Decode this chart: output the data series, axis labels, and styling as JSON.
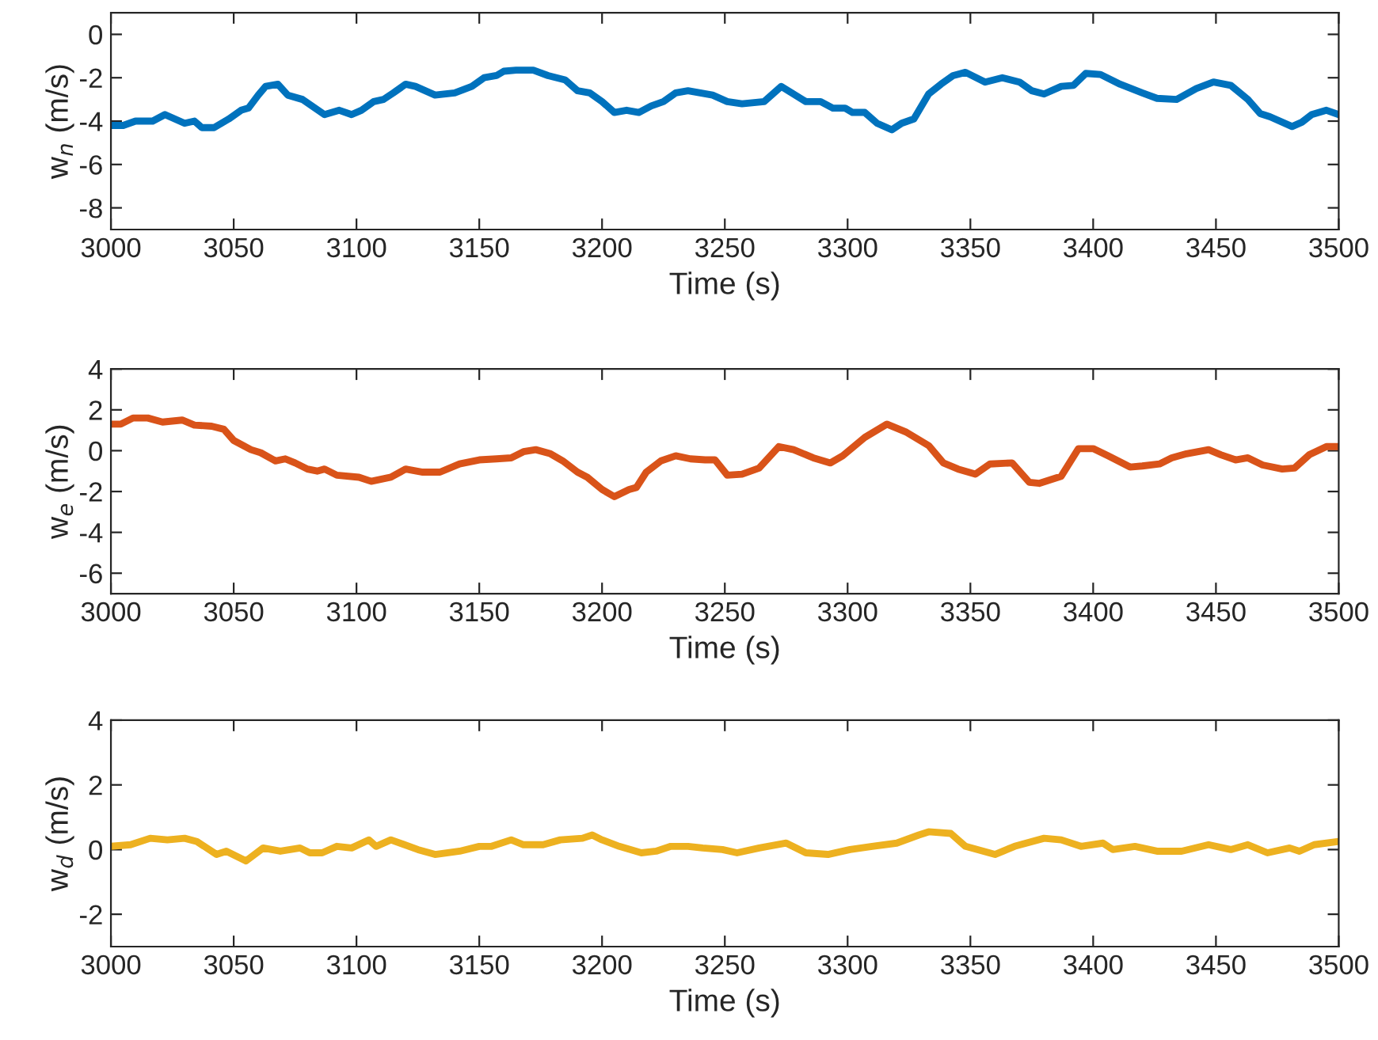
{
  "chart_data": [
    {
      "type": "line",
      "xlabel": "Time (s)",
      "ylabel": "w$_{n}$ (m/s)",
      "xlim": [
        3000,
        3500
      ],
      "xticks": [
        3000,
        3050,
        3100,
        3150,
        3200,
        3250,
        3300,
        3350,
        3400,
        3450,
        3500
      ],
      "ylim": [
        -9,
        1
      ],
      "yticks": [
        -8,
        -6,
        -4,
        -2,
        0
      ],
      "grid": false,
      "legend": false,
      "line_style": "solid",
      "marker": "none",
      "series": [
        {
          "color": "#0072bd",
          "x": [
            3000,
            3005,
            3010,
            3017,
            3022,
            3030,
            3034,
            3037,
            3042,
            3048,
            3053,
            3056,
            3060,
            3063,
            3068,
            3072,
            3078,
            3087,
            3093,
            3098,
            3102,
            3107,
            3111,
            3115,
            3120,
            3124,
            3132,
            3140,
            3147,
            3152,
            3157,
            3160,
            3165,
            3172,
            3178,
            3185,
            3190,
            3195,
            3200,
            3205,
            3210,
            3215,
            3220,
            3225,
            3230,
            3235,
            3240,
            3245,
            3251,
            3257,
            3266,
            3273,
            3283,
            3289,
            3294,
            3299,
            3302,
            3307,
            3312,
            3318,
            3322,
            3327,
            3333,
            3338,
            3343,
            3348,
            3356,
            3363,
            3370,
            3375,
            3380,
            3387,
            3392,
            3397,
            3403,
            3411,
            3420,
            3426,
            3434,
            3442,
            3449,
            3456,
            3463,
            3468,
            3472,
            3481,
            3485,
            3489,
            3495,
            3500
          ],
          "values": [
            -4.2,
            -4.2,
            -4.0,
            -4.0,
            -3.7,
            -4.1,
            -4.0,
            -4.3,
            -4.3,
            -3.9,
            -3.5,
            -3.4,
            -2.8,
            -2.4,
            -2.3,
            -2.8,
            -3.0,
            -3.7,
            -3.5,
            -3.7,
            -3.5,
            -3.1,
            -3.0,
            -2.7,
            -2.3,
            -2.4,
            -2.8,
            -2.7,
            -2.4,
            -2.0,
            -1.9,
            -1.7,
            -1.65,
            -1.65,
            -1.9,
            -2.1,
            -2.6,
            -2.7,
            -3.1,
            -3.6,
            -3.5,
            -3.6,
            -3.3,
            -3.1,
            -2.7,
            -2.6,
            -2.7,
            -2.8,
            -3.1,
            -3.2,
            -3.1,
            -2.4,
            -3.1,
            -3.1,
            -3.4,
            -3.4,
            -3.6,
            -3.6,
            -4.1,
            -4.4,
            -4.1,
            -3.9,
            -2.75,
            -2.3,
            -1.9,
            -1.75,
            -2.2,
            -2.0,
            -2.2,
            -2.6,
            -2.75,
            -2.4,
            -2.35,
            -1.8,
            -1.85,
            -2.3,
            -2.7,
            -2.95,
            -3.0,
            -2.5,
            -2.2,
            -2.35,
            -3.0,
            -3.65,
            -3.8,
            -4.25,
            -4.05,
            -3.7,
            -3.5,
            -3.7
          ]
        }
      ]
    },
    {
      "type": "line",
      "xlabel": "Time (s)",
      "ylabel": "w$_{e}$ (m/s)",
      "xlim": [
        3000,
        3500
      ],
      "xticks": [
        3000,
        3050,
        3100,
        3150,
        3200,
        3250,
        3300,
        3350,
        3400,
        3450,
        3500
      ],
      "ylim": [
        -7,
        4
      ],
      "yticks": [
        -6,
        -4,
        -2,
        0,
        2,
        4
      ],
      "grid": false,
      "legend": false,
      "line_style": "solid",
      "marker": "none",
      "series": [
        {
          "color": "#d95319",
          "x": [
            3000,
            3004,
            3009,
            3015,
            3021,
            3029,
            3034,
            3041,
            3046,
            3050,
            3057,
            3061,
            3067,
            3071,
            3075,
            3080,
            3084,
            3087,
            3092,
            3101,
            3106,
            3114,
            3120,
            3127,
            3134,
            3142,
            3150,
            3157,
            3163,
            3168,
            3173,
            3179,
            3184,
            3190,
            3194,
            3200,
            3205,
            3211,
            3214,
            3218,
            3224,
            3230,
            3236,
            3242,
            3246,
            3251,
            3257,
            3264,
            3272,
            3278,
            3286,
            3293,
            3298,
            3307,
            3316,
            3324,
            3333,
            3339,
            3345,
            3352,
            3358,
            3367,
            3374,
            3378,
            3387,
            3394,
            3400,
            3406,
            3415,
            3420,
            3427,
            3432,
            3438,
            3447,
            3452,
            3458,
            3463,
            3469,
            3477,
            3482,
            3488,
            3495,
            3500
          ],
          "values": [
            1.3,
            1.3,
            1.6,
            1.6,
            1.4,
            1.5,
            1.25,
            1.2,
            1.05,
            0.5,
            0.05,
            -0.1,
            -0.5,
            -0.4,
            -0.6,
            -0.9,
            -1.0,
            -0.9,
            -1.2,
            -1.3,
            -1.5,
            -1.3,
            -0.9,
            -1.05,
            -1.05,
            -0.65,
            -0.45,
            -0.4,
            -0.35,
            -0.05,
            0.05,
            -0.15,
            -0.5,
            -1.05,
            -1.3,
            -1.9,
            -2.25,
            -1.9,
            -1.8,
            -1.05,
            -0.5,
            -0.25,
            -0.4,
            -0.45,
            -0.45,
            -1.2,
            -1.15,
            -0.85,
            0.2,
            0.05,
            -0.35,
            -0.6,
            -0.25,
            0.65,
            1.3,
            0.9,
            0.25,
            -0.6,
            -0.9,
            -1.15,
            -0.65,
            -0.6,
            -1.55,
            -1.6,
            -1.25,
            0.1,
            0.1,
            -0.25,
            -0.8,
            -0.75,
            -0.65,
            -0.35,
            -0.15,
            0.05,
            -0.2,
            -0.45,
            -0.35,
            -0.7,
            -0.9,
            -0.85,
            -0.2,
            0.2,
            0.2
          ]
        }
      ]
    },
    {
      "type": "line",
      "xlabel": "Time (s)",
      "ylabel": "w$_{d}$ (m/s)",
      "xlim": [
        3000,
        3500
      ],
      "xticks": [
        3000,
        3050,
        3100,
        3150,
        3200,
        3250,
        3300,
        3350,
        3400,
        3450,
        3500
      ],
      "ylim": [
        -3,
        4
      ],
      "yticks": [
        -2,
        0,
        2,
        4
      ],
      "grid": false,
      "legend": false,
      "line_style": "solid",
      "marker": "none",
      "series": [
        {
          "color": "#edb120",
          "x": [
            3000,
            3008,
            3016,
            3023,
            3030,
            3035,
            3043,
            3047,
            3055,
            3062,
            3069,
            3077,
            3081,
            3086,
            3092,
            3098,
            3105,
            3108,
            3114,
            3125,
            3132,
            3142,
            3150,
            3155,
            3163,
            3168,
            3176,
            3183,
            3192,
            3196,
            3200,
            3207,
            3216,
            3222,
            3228,
            3235,
            3241,
            3249,
            3255,
            3264,
            3275,
            3283,
            3292,
            3301,
            3310,
            3320,
            3329,
            3333,
            3342,
            3348,
            3360,
            3368,
            3380,
            3387,
            3395,
            3404,
            3408,
            3417,
            3426,
            3436,
            3447,
            3456,
            3463,
            3471,
            3480,
            3484,
            3490,
            3500
          ],
          "values": [
            0.1,
            0.15,
            0.35,
            0.3,
            0.35,
            0.25,
            -0.15,
            -0.05,
            -0.35,
            0.05,
            -0.05,
            0.05,
            -0.1,
            -0.1,
            0.1,
            0.05,
            0.3,
            0.1,
            0.3,
            0.0,
            -0.15,
            -0.05,
            0.1,
            0.1,
            0.3,
            0.15,
            0.15,
            0.3,
            0.35,
            0.45,
            0.3,
            0.1,
            -0.1,
            -0.05,
            0.1,
            0.1,
            0.05,
            0.0,
            -0.1,
            0.05,
            0.2,
            -0.1,
            -0.15,
            0.0,
            0.1,
            0.2,
            0.45,
            0.55,
            0.5,
            0.1,
            -0.15,
            0.1,
            0.35,
            0.3,
            0.1,
            0.2,
            0.0,
            0.1,
            -0.05,
            -0.05,
            0.15,
            0.0,
            0.15,
            -0.1,
            0.05,
            -0.05,
            0.15,
            0.25
          ]
        }
      ]
    }
  ]
}
